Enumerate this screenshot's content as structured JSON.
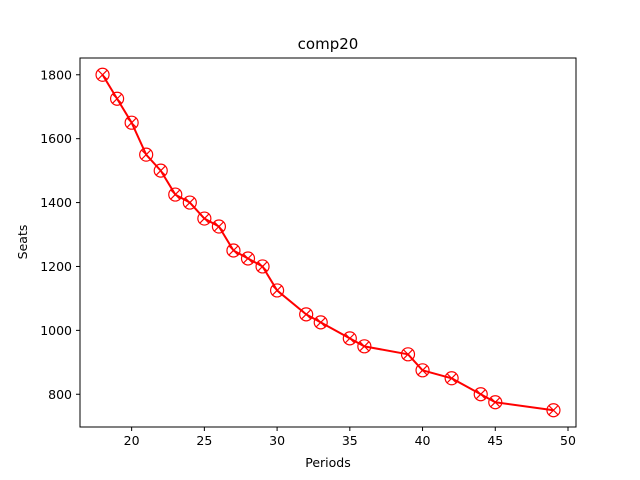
{
  "chart_data": {
    "type": "line",
    "title": "comp20",
    "xlabel": "Periods",
    "ylabel": "Seats",
    "xlim": [
      16.45,
      50.55
    ],
    "ylim": [
      697.5,
      1852.5
    ],
    "xticks": [
      20,
      25,
      30,
      35,
      40,
      45,
      50
    ],
    "yticks": [
      800,
      1000,
      1200,
      1400,
      1600,
      1800
    ],
    "grid": false,
    "series": [
      {
        "color": "#ff0000",
        "marker": "circle-x",
        "x": [
          18,
          19,
          20,
          21,
          22,
          23,
          24,
          25,
          26,
          27,
          28,
          29,
          30,
          32,
          33,
          35,
          36,
          39,
          40,
          42,
          44,
          45,
          49
        ],
        "y": [
          1800,
          1725,
          1650,
          1550,
          1500,
          1425,
          1400,
          1350,
          1325,
          1250,
          1225,
          1200,
          1125,
          1050,
          1025,
          975,
          950,
          925,
          875,
          850,
          800,
          775,
          750
        ]
      }
    ]
  }
}
